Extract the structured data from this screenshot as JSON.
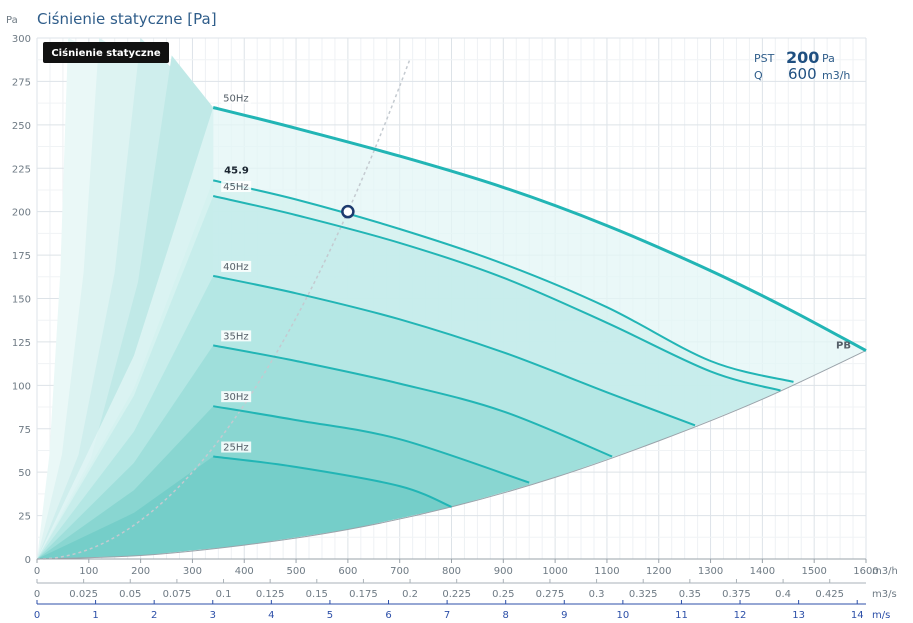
{
  "chart_data": {
    "type": "line",
    "title": "Ciśnienie statyczne [Pa]",
    "badge": "Ciśnienie statyczne",
    "y_unit": "Pa",
    "ylim": [
      0,
      300
    ],
    "y_ticks": [
      0,
      25,
      50,
      75,
      100,
      125,
      150,
      175,
      200,
      225,
      250,
      275,
      300
    ],
    "xlim": [
      0,
      1600
    ],
    "x_unit": "m3/h",
    "x_ticks": [
      0,
      100,
      200,
      300,
      400,
      500,
      600,
      700,
      800,
      900,
      1000,
      1100,
      1200,
      1300,
      1400,
      1500,
      1600
    ],
    "x2_unit": "m3/s",
    "x2_ticks": [
      "0",
      "0.025",
      "0.05",
      "0.075",
      "0.1",
      "0.125",
      "0.15",
      "0.175",
      "0.2",
      "0.225",
      "0.25",
      "0.275",
      "0.3",
      "0.325",
      "0.35",
      "0.375",
      "0.4",
      "0.425"
    ],
    "x3_unit": "m/s",
    "x3_ticks": [
      "0",
      "1",
      "2",
      "3",
      "4",
      "5",
      "6",
      "7",
      "8",
      "9",
      "10",
      "11",
      "12",
      "13",
      "14"
    ],
    "grid": true,
    "colors": {
      "curve": "#22b5b5",
      "fill": "#7fd6d2",
      "system": "#c8ced3",
      "marker": "#1c3a6e",
      "title": "#2f5d8a",
      "badge": "#111111",
      "axis_blue": "#2c4fa8"
    },
    "series": [
      {
        "name": "50Hz",
        "x": [
          340,
          500,
          700,
          900,
          1100,
          1300,
          1450,
          1600
        ],
        "y": [
          260,
          248,
          232,
          214,
          192,
          166,
          144,
          120
        ]
      },
      {
        "name": "45.9",
        "x": [
          340,
          500,
          700,
          900,
          1100,
          1300,
          1460
        ],
        "y": [
          218,
          207,
          190,
          170,
          145,
          114,
          102
        ]
      },
      {
        "name": "45Hz",
        "x": [
          340,
          500,
          700,
          900,
          1100,
          1300,
          1435
        ],
        "y": [
          209,
          198,
          182,
          162,
          136,
          108,
          97
        ]
      },
      {
        "name": "40Hz",
        "x": [
          340,
          500,
          700,
          900,
          1100,
          1270
        ],
        "y": [
          163,
          153,
          138,
          119,
          96,
          77
        ]
      },
      {
        "name": "35Hz",
        "x": [
          340,
          500,
          700,
          900,
          1110
        ],
        "y": [
          123,
          114,
          101,
          85,
          59
        ]
      },
      {
        "name": "30Hz",
        "x": [
          340,
          500,
          700,
          950
        ],
        "y": [
          88,
          80,
          69,
          44
        ]
      },
      {
        "name": "25Hz",
        "x": [
          340,
          500,
          700,
          800
        ],
        "y": [
          59,
          53,
          42,
          30
        ]
      }
    ],
    "system_curve": {
      "label": "PB",
      "x": [
        0,
        200,
        400,
        600,
        800,
        1000,
        1200,
        1400,
        1600
      ],
      "y": [
        0,
        2,
        8,
        17,
        30,
        47,
        68,
        92,
        120
      ]
    },
    "operating_point": {
      "q": 600,
      "p": 200,
      "label": "45.9"
    },
    "readout": {
      "p_label": "PST",
      "p_value": "200",
      "p_unit": "Pa",
      "q_label": "Q",
      "q_value": "600",
      "q_unit": "m3/h"
    }
  }
}
